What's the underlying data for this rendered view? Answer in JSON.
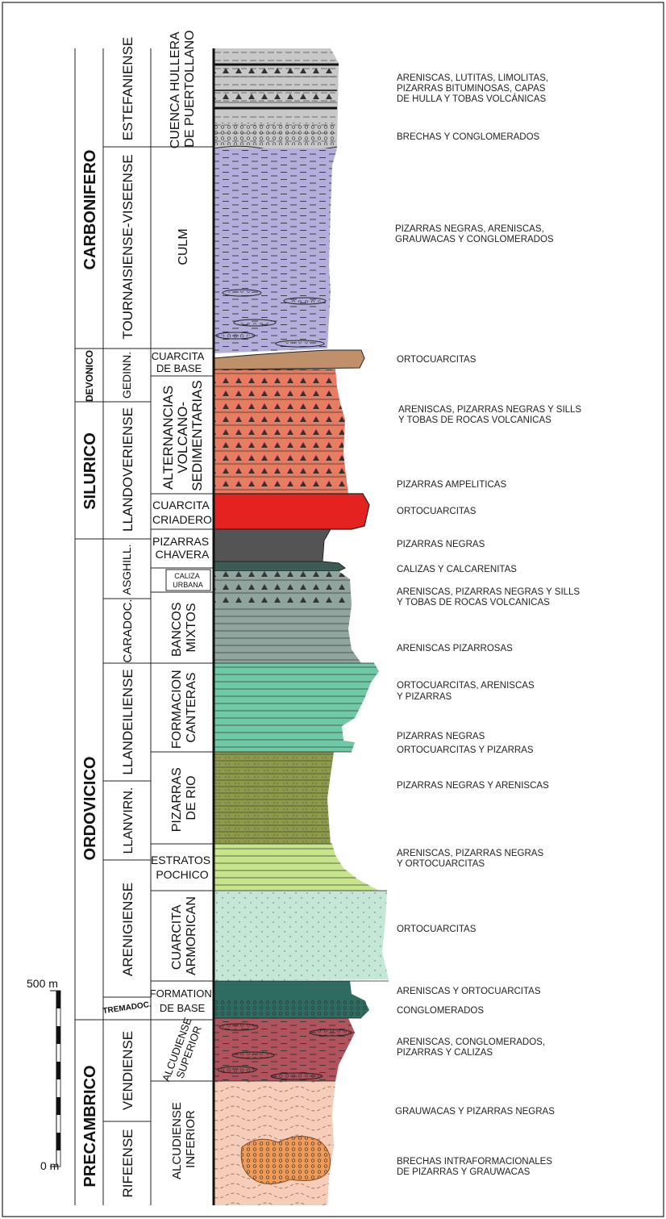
{
  "periods": [
    {
      "id": "carbonifero",
      "label": "CARBONIFERO"
    },
    {
      "id": "devonico",
      "label": "DEVONICO"
    },
    {
      "id": "silurico",
      "label": "SILURICO"
    },
    {
      "id": "ordovicico",
      "label": "ORDOVICICO"
    },
    {
      "id": "precambrico",
      "label": "PRECAMBRICO"
    }
  ],
  "stages": [
    {
      "id": "estefaniense",
      "label": "ESTEFANIENSE"
    },
    {
      "id": "tournaisiense",
      "label": "TOURNAISIENSE-VISEENSE"
    },
    {
      "id": "gedinn",
      "label": "GEDINN."
    },
    {
      "id": "llandoveriense",
      "label": "LLANDOVERIENSE"
    },
    {
      "id": "asghill",
      "label": "ASGHILL."
    },
    {
      "id": "caradoc",
      "label": "CARADOC."
    },
    {
      "id": "llandeiliense",
      "label": "LLANDEILIENSE"
    },
    {
      "id": "llanvirn",
      "label": "LLANVIRN."
    },
    {
      "id": "arenigiense",
      "label": "ARENIGIENSE"
    },
    {
      "id": "tremadoc",
      "label": "TREMADOC."
    },
    {
      "id": "vendiense",
      "label": "VENDIENSE"
    },
    {
      "id": "rifeense",
      "label": "RIFEENSE"
    }
  ],
  "units": [
    {
      "id": "puertollano",
      "lines": [
        "CUENCA HULLERA",
        "DE PUERTOLLANO"
      ]
    },
    {
      "id": "culm",
      "lines": [
        "CULM"
      ]
    },
    {
      "id": "cuarcita-base",
      "lines": [
        "CUARCITA",
        "DE BASE"
      ]
    },
    {
      "id": "alternancias",
      "lines": [
        "ALTERNANCIAS",
        "VOLCANO-",
        "SEDIMENTARIAS"
      ]
    },
    {
      "id": "criadero",
      "lines": [
        "CUARCITA",
        "CRIADERO"
      ]
    },
    {
      "id": "chavera",
      "lines": [
        "PIZARRAS",
        "CHAVERA"
      ]
    },
    {
      "id": "caliza-urbana",
      "lines": [
        "CALIZA",
        "URBANA"
      ]
    },
    {
      "id": "bancos-mixtos",
      "lines": [
        "BANCOS",
        "MIXTOS"
      ]
    },
    {
      "id": "canteras",
      "lines": [
        "FORMACION",
        "CANTERAS"
      ]
    },
    {
      "id": "pizarras-rio",
      "lines": [
        "PIZARRAS",
        "DE RIO"
      ]
    },
    {
      "id": "pochico",
      "lines": [
        "ESTRATOS",
        "POCHICO"
      ]
    },
    {
      "id": "armorican",
      "lines": [
        "CUARCITA",
        "ARMORICAN"
      ]
    },
    {
      "id": "formation-base",
      "lines": [
        "FORMATION",
        "DE BASE"
      ]
    },
    {
      "id": "alcudiense-sup",
      "lines": [
        "ALCUDIENSE",
        "SUPERIOR"
      ]
    },
    {
      "id": "alcudiense-inf",
      "lines": [
        "ALCUDIENSE",
        "INFERIOR"
      ]
    }
  ],
  "descriptions": [
    {
      "id": "d1",
      "lines": [
        "ARENISCAS, LUTITAS, LIMOLITAS,",
        "PIZARRAS BITUMINOSAS, CAPAS",
        "DE HULLA Y TOBAS VOLCÁNICAS"
      ]
    },
    {
      "id": "d2",
      "lines": [
        "BRECHAS Y CONGLOMERADOS"
      ]
    },
    {
      "id": "d3",
      "lines": [
        "PIZARRAS NEGRAS, ARENISCAS,",
        "GRAUWACAS Y CONGLOMERADOS"
      ]
    },
    {
      "id": "d4",
      "lines": [
        "ORTOCUARCITAS"
      ]
    },
    {
      "id": "d5",
      "lines": [
        "ARENISCAS, PIZARRAS NEGRAS Y SILLS",
        "Y TOBAS DE ROCAS VOLCANICAS"
      ]
    },
    {
      "id": "d6",
      "lines": [
        "PIZARRAS AMPELITICAS"
      ]
    },
    {
      "id": "d7",
      "lines": [
        "ORTOCUARCITAS"
      ]
    },
    {
      "id": "d8",
      "lines": [
        "PIZARRAS NEGRAS"
      ]
    },
    {
      "id": "d9",
      "lines": [
        "CALIZAS Y CALCARENITAS"
      ]
    },
    {
      "id": "d10",
      "lines": [
        "ARENISCAS, PIZARRAS NEGRAS Y SILLS",
        "Y TOBAS DE ROCAS VOLCANICAS"
      ]
    },
    {
      "id": "d11",
      "lines": [
        "ARENISCAS PIZARROSAS"
      ]
    },
    {
      "id": "d12",
      "lines": [
        "ORTOCUARCITAS, ARENISCAS",
        "Y PIZARRAS"
      ]
    },
    {
      "id": "d13",
      "lines": [
        "PIZARRAS NEGRAS"
      ]
    },
    {
      "id": "d14",
      "lines": [
        "ORTOCUARCITAS Y PIZARRAS"
      ]
    },
    {
      "id": "d15",
      "lines": [
        "PIZARRAS NEGRAS Y ARENISCAS"
      ]
    },
    {
      "id": "d16",
      "lines": [
        "ARENISCAS, PIZARRAS NEGRAS",
        "Y ORTOCUARCITAS"
      ]
    },
    {
      "id": "d17",
      "lines": [
        "ORTOCUARCITAS"
      ]
    },
    {
      "id": "d18",
      "lines": [
        "ARENISCAS Y ORTOCUARCITAS"
      ]
    },
    {
      "id": "d19",
      "lines": [
        "CONGLOMERADOS"
      ]
    },
    {
      "id": "d20",
      "lines": [
        "ARENISCAS, CONGLOMERADOS,",
        "PIZARRAS Y CALIZAS"
      ]
    },
    {
      "id": "d21",
      "lines": [
        "GRAUWACAS Y PIZARRAS NEGRAS"
      ]
    },
    {
      "id": "d22",
      "lines": [
        "BRECHAS INTRAFORMACIONALES",
        "DE PIZARRAS Y GRAUWACAS"
      ]
    }
  ],
  "scale": {
    "top": "500 m",
    "bottom": "0 m"
  },
  "colors": {
    "hullera": "#c8c8c8",
    "culm": "#b3addb",
    "cuarcita_base": "#c0906a",
    "volcano": "#e87b62",
    "criadero": "#e42320",
    "chavera": "#545454",
    "caliza": "#3d5b56",
    "bancos": "#8fa59d",
    "canteras": "#6ec9a4",
    "rio": "#8c9a4a",
    "pochico": "#c6e58a",
    "armorican": "#c4e7d6",
    "formation_base": "#2e6b60",
    "alcud_sup": "#b1535d",
    "alcud_inf": "#f5cdb9",
    "breccia": "#ef9a56"
  }
}
